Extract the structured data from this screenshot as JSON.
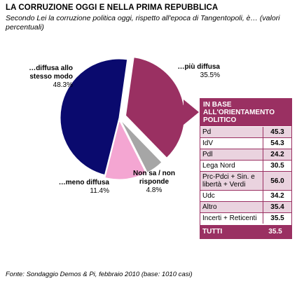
{
  "header": {
    "title": "LA CORRUZIONE OGGI E NELLA PRIMA REPUBBLICA",
    "subtitle": "Secondo Lei la corruzione politica oggi, rispetto all'epoca di Tangentopoli, è… (valori percentuali)"
  },
  "chart_data": {
    "type": "pie",
    "title": "LA CORRUZIONE OGGI E NELLA PRIMA REPUBBLICA",
    "slices": [
      {
        "label": "…più diffusa",
        "value": 35.5,
        "value_text": "35.5%",
        "color": "#9a3062"
      },
      {
        "label": "Non sa / non risponde",
        "value": 4.8,
        "value_text": "4.8%",
        "color": "#a6a6a6"
      },
      {
        "label": "…meno diffusa",
        "value": 11.4,
        "value_text": "11.4%",
        "color": "#f4a6d2"
      },
      {
        "label": "…diffusa allo stesso modo",
        "value": 48.3,
        "value_text": "48.3%",
        "color": "#0a0a6e"
      }
    ]
  },
  "panel": {
    "title": "IN BASE ALL'ORIENTAMENTO POLITICO",
    "rows": [
      {
        "name": "Pd",
        "value": "45.3"
      },
      {
        "name": "IdV",
        "value": "54.3"
      },
      {
        "name": "Pdl",
        "value": "24.2"
      },
      {
        "name": "Lega Nord",
        "value": "30.5"
      },
      {
        "name": "Prc-Pdci + Sin. e libertà + Verdi",
        "value": "56.0"
      },
      {
        "name": "Udc",
        "value": "34.2"
      },
      {
        "name": "Altro",
        "value": "35.4"
      },
      {
        "name": "Incerti + Reticenti",
        "value": "35.5"
      }
    ],
    "total": {
      "name": "TUTTI",
      "value": "35.5"
    }
  },
  "footer": {
    "source": "Fonte: Sondaggio Demos & Pi, febbraio 2010 (base: 1010 casi)"
  }
}
